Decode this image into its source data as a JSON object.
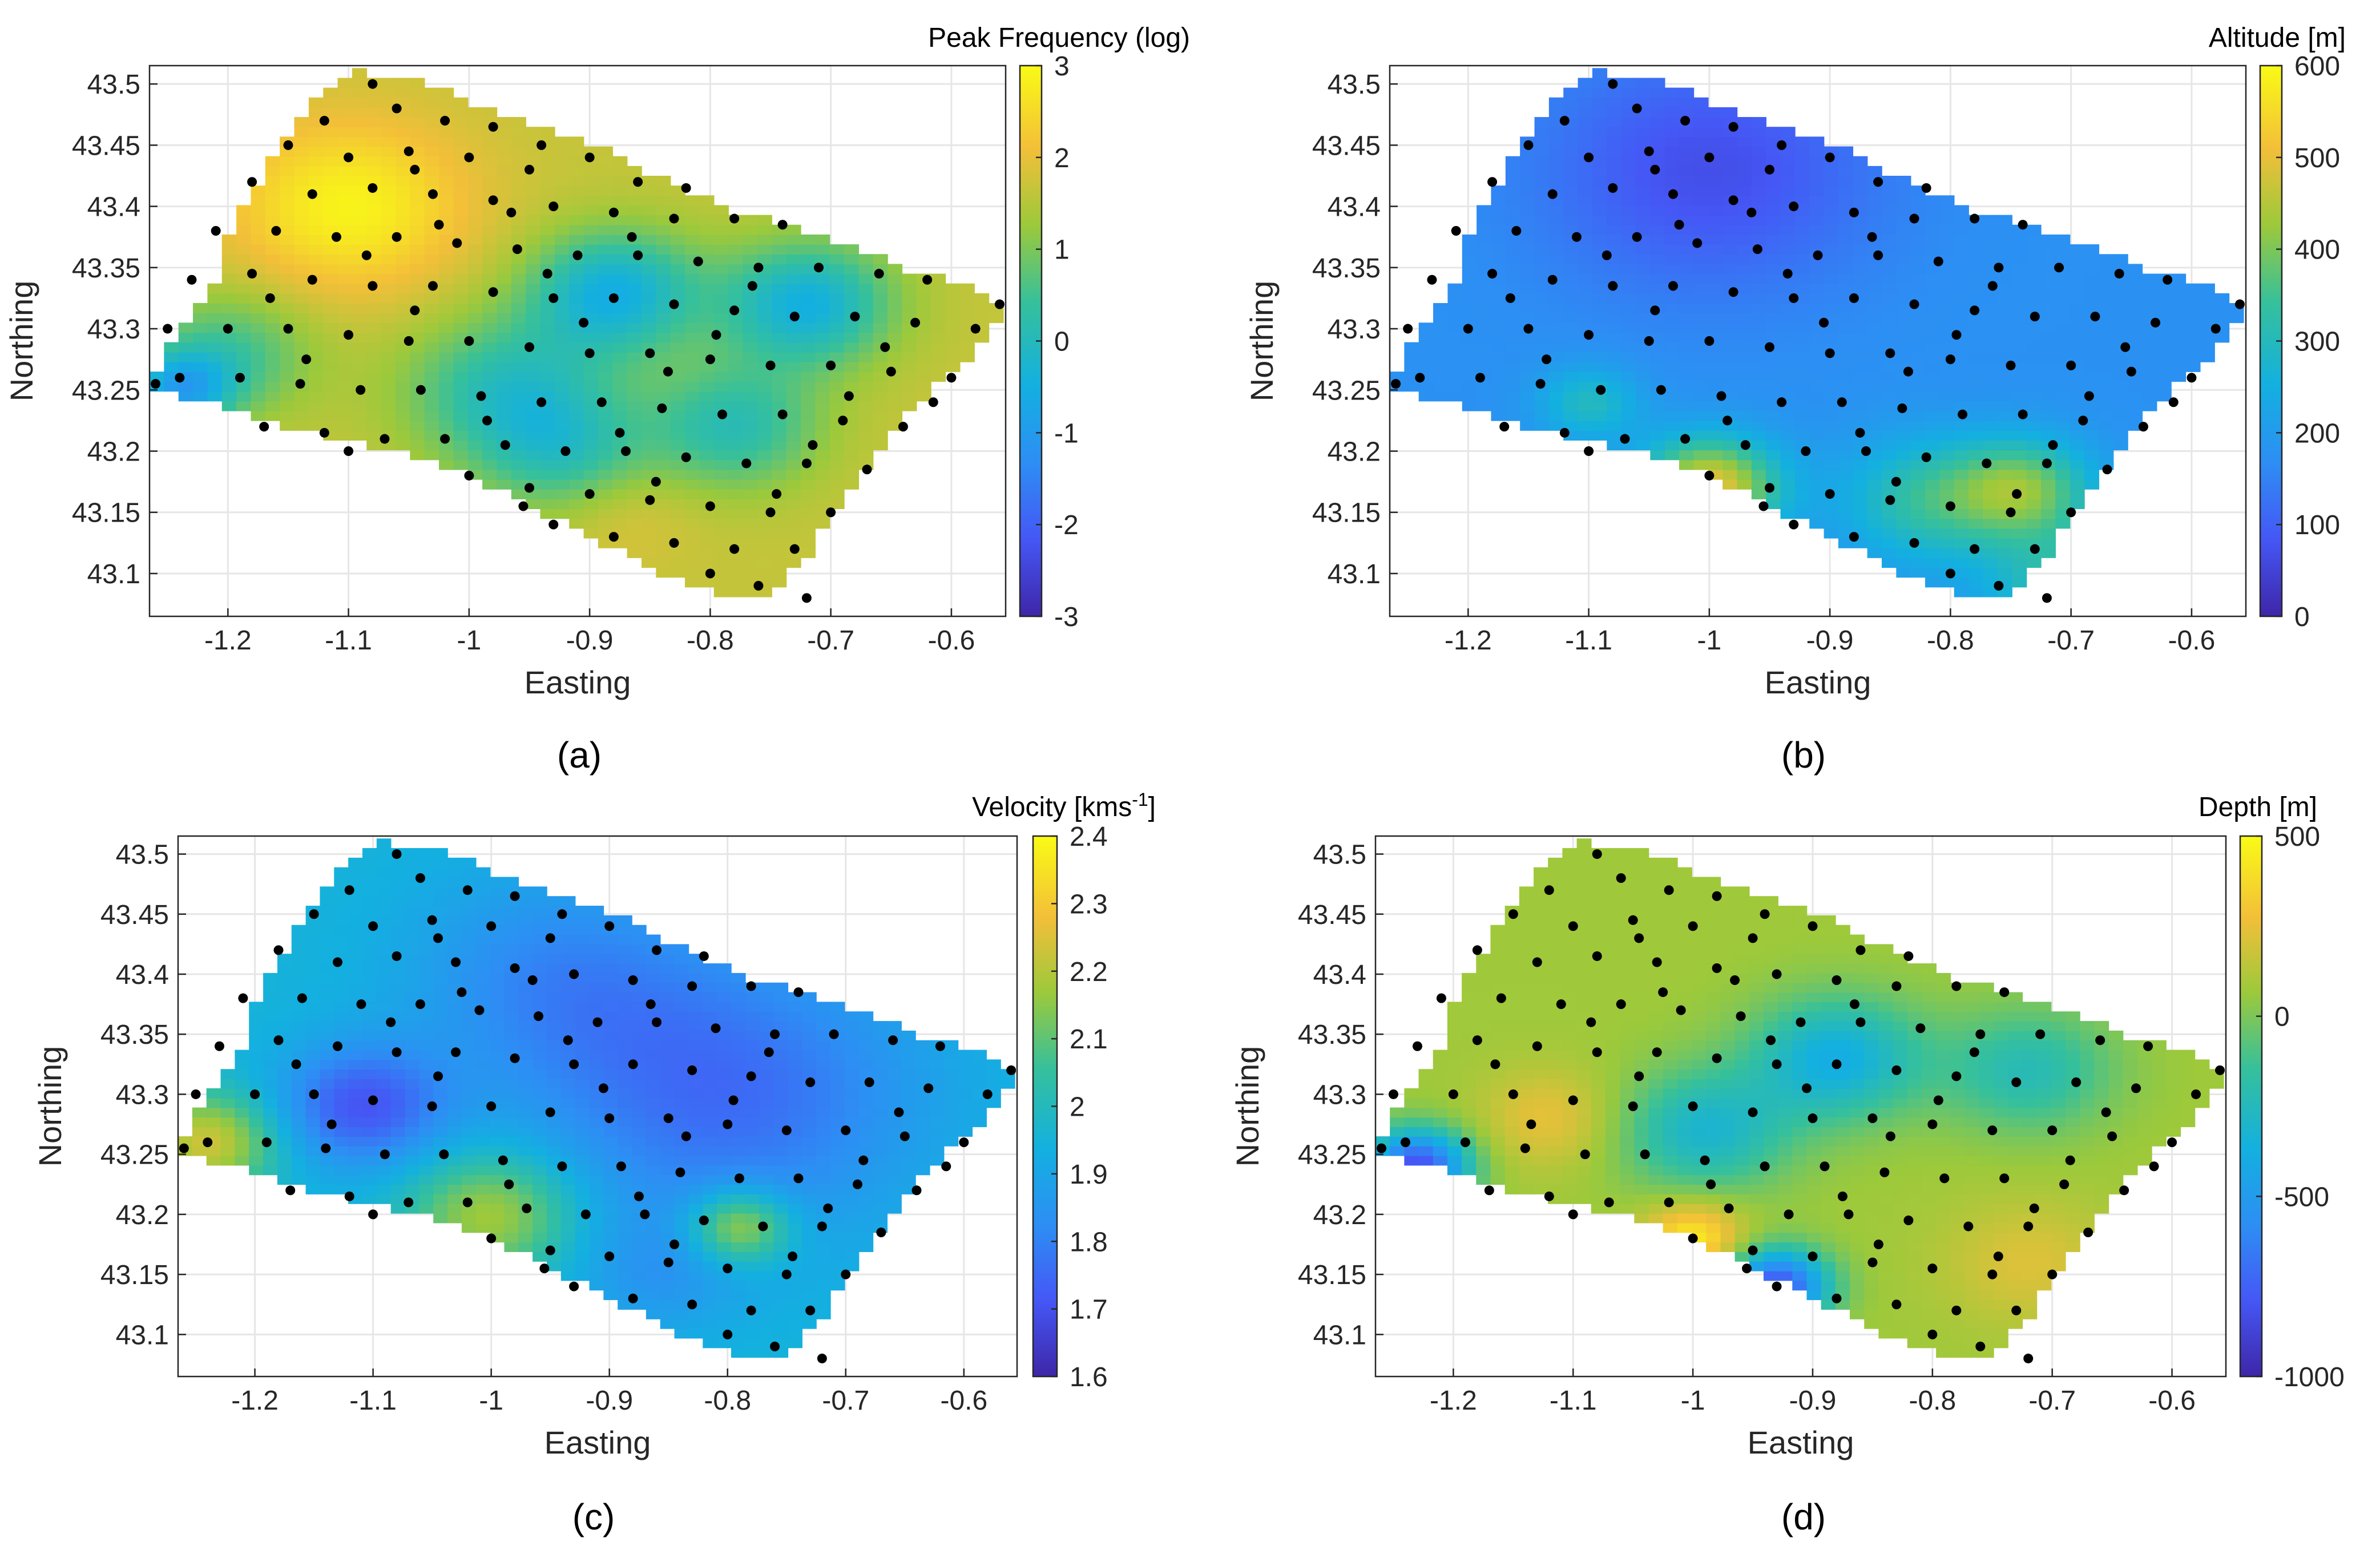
{
  "chart_data": [
    {
      "type": "heatmap",
      "panel_label": "(a)",
      "colorbar_label": "Peak Frequency (log)",
      "xlabel": "Easting",
      "ylabel": "Northing",
      "xlim": [
        -1.265,
        -0.555
      ],
      "ylim": [
        43.065,
        43.515
      ],
      "xticks": [
        "-1.2",
        "-1.1",
        "-1",
        "-0.9",
        "-0.8",
        "-0.7",
        "-0.6"
      ],
      "yticks": [
        "43.1",
        "43.15",
        "43.2",
        "43.25",
        "43.3",
        "43.35",
        "43.4",
        "43.45",
        "43.5"
      ],
      "colorbar_ticks": [
        "-3",
        "-2",
        "-1",
        "0",
        "1",
        "2",
        "3"
      ],
      "clim": [
        -3,
        3
      ]
    },
    {
      "type": "heatmap",
      "panel_label": "(b)",
      "colorbar_label": "Altitude [m]",
      "xlabel": "Easting",
      "ylabel": "Northing",
      "xlim": [
        -1.265,
        -0.555
      ],
      "ylim": [
        43.065,
        43.515
      ],
      "xticks": [
        "-1.2",
        "-1.1",
        "-1",
        "-0.9",
        "-0.8",
        "-0.7",
        "-0.6"
      ],
      "yticks": [
        "43.1",
        "43.15",
        "43.2",
        "43.25",
        "43.3",
        "43.35",
        "43.4",
        "43.45",
        "43.5"
      ],
      "colorbar_ticks": [
        "0",
        "100",
        "200",
        "300",
        "400",
        "500",
        "600"
      ],
      "clim": [
        0,
        600
      ]
    },
    {
      "type": "heatmap",
      "panel_label": "(c)",
      "colorbar_label": "Velocity [kms",
      "colorbar_label_sup": "-1",
      "colorbar_label_end": "]",
      "xlabel": "Easting",
      "ylabel": "Northing",
      "xlim": [
        -1.265,
        -0.555
      ],
      "ylim": [
        43.065,
        43.515
      ],
      "xticks": [
        "-1.2",
        "-1.1",
        "-1",
        "-0.9",
        "-0.8",
        "-0.7",
        "-0.6"
      ],
      "yticks": [
        "43.1",
        "43.15",
        "43.2",
        "43.25",
        "43.3",
        "43.35",
        "43.4",
        "43.45",
        "43.5"
      ],
      "colorbar_ticks": [
        "1.6",
        "1.7",
        "1.8",
        "1.9",
        "2",
        "2.1",
        "2.2",
        "2.3",
        "2.4"
      ],
      "clim": [
        1.6,
        2.4
      ]
    },
    {
      "type": "heatmap",
      "panel_label": "(d)",
      "colorbar_label": "Depth [m]",
      "xlabel": "Easting",
      "ylabel": "Northing",
      "xlim": [
        -1.265,
        -0.555
      ],
      "ylim": [
        43.065,
        43.515
      ],
      "xticks": [
        "-1.2",
        "-1.1",
        "-1",
        "-0.9",
        "-0.8",
        "-0.7",
        "-0.6"
      ],
      "yticks": [
        "43.1",
        "43.15",
        "43.2",
        "43.25",
        "43.3",
        "43.35",
        "43.4",
        "43.45",
        "43.5"
      ],
      "colorbar_ticks": [
        "-1000",
        "-500",
        "0",
        "500"
      ],
      "clim": [
        -1000,
        500
      ]
    }
  ],
  "stations": [
    [
      -1.08,
      43.5
    ],
    [
      -1.12,
      43.47
    ],
    [
      -1.06,
      43.48
    ],
    [
      -1.02,
      43.47
    ],
    [
      -0.98,
      43.465
    ],
    [
      -0.94,
      43.45
    ],
    [
      -0.9,
      43.44
    ],
    [
      -1.15,
      43.45
    ],
    [
      -1.1,
      43.44
    ],
    [
      -1.05,
      43.445
    ],
    [
      -1.0,
      43.44
    ],
    [
      -0.95,
      43.43
    ],
    [
      -0.86,
      43.42
    ],
    [
      -0.82,
      43.415
    ],
    [
      -1.18,
      43.42
    ],
    [
      -1.13,
      43.41
    ],
    [
      -1.08,
      43.415
    ],
    [
      -1.03,
      43.41
    ],
    [
      -0.98,
      43.405
    ],
    [
      -0.93,
      43.4
    ],
    [
      -0.88,
      43.395
    ],
    [
      -0.83,
      43.39
    ],
    [
      -0.78,
      43.39
    ],
    [
      -0.74,
      43.385
    ],
    [
      -1.21,
      43.38
    ],
    [
      -1.16,
      43.38
    ],
    [
      -1.11,
      43.375
    ],
    [
      -1.06,
      43.375
    ],
    [
      -1.01,
      43.37
    ],
    [
      -0.96,
      43.365
    ],
    [
      -0.91,
      43.36
    ],
    [
      -0.86,
      43.36
    ],
    [
      -0.81,
      43.355
    ],
    [
      -0.76,
      43.35
    ],
    [
      -0.71,
      43.35
    ],
    [
      -0.66,
      43.345
    ],
    [
      -0.62,
      43.34
    ],
    [
      -1.23,
      43.34
    ],
    [
      -1.18,
      43.345
    ],
    [
      -1.13,
      43.34
    ],
    [
      -1.08,
      43.335
    ],
    [
      -1.03,
      43.335
    ],
    [
      -0.98,
      43.33
    ],
    [
      -0.93,
      43.325
    ],
    [
      -0.88,
      43.325
    ],
    [
      -0.83,
      43.32
    ],
    [
      -0.78,
      43.315
    ],
    [
      -0.73,
      43.31
    ],
    [
      -0.68,
      43.31
    ],
    [
      -0.63,
      43.305
    ],
    [
      -0.58,
      43.3
    ],
    [
      -1.25,
      43.3
    ],
    [
      -1.2,
      43.3
    ],
    [
      -1.15,
      43.3
    ],
    [
      -1.1,
      43.295
    ],
    [
      -1.05,
      43.29
    ],
    [
      -1.0,
      43.29
    ],
    [
      -0.95,
      43.285
    ],
    [
      -0.9,
      43.28
    ],
    [
      -0.85,
      43.28
    ],
    [
      -0.8,
      43.275
    ],
    [
      -0.75,
      43.27
    ],
    [
      -0.7,
      43.27
    ],
    [
      -0.65,
      43.265
    ],
    [
      -0.6,
      43.26
    ],
    [
      -1.24,
      43.26
    ],
    [
      -1.19,
      43.26
    ],
    [
      -1.14,
      43.255
    ],
    [
      -1.09,
      43.25
    ],
    [
      -1.04,
      43.25
    ],
    [
      -0.99,
      43.245
    ],
    [
      -0.94,
      43.24
    ],
    [
      -0.89,
      43.24
    ],
    [
      -0.84,
      43.235
    ],
    [
      -0.79,
      43.23
    ],
    [
      -0.74,
      43.23
    ],
    [
      -0.69,
      43.225
    ],
    [
      -0.64,
      43.22
    ],
    [
      -1.17,
      43.22
    ],
    [
      -1.12,
      43.215
    ],
    [
      -1.07,
      43.21
    ],
    [
      -1.02,
      43.21
    ],
    [
      -0.97,
      43.205
    ],
    [
      -0.92,
      43.2
    ],
    [
      -0.87,
      43.2
    ],
    [
      -0.82,
      43.195
    ],
    [
      -0.77,
      43.19
    ],
    [
      -0.72,
      43.19
    ],
    [
      -0.67,
      43.185
    ],
    [
      -1.1,
      43.2
    ],
    [
      -1.0,
      43.18
    ],
    [
      -0.95,
      43.17
    ],
    [
      -0.9,
      43.165
    ],
    [
      -0.85,
      43.16
    ],
    [
      -0.8,
      43.155
    ],
    [
      -0.75,
      43.15
    ],
    [
      -0.7,
      43.15
    ],
    [
      -0.93,
      43.14
    ],
    [
      -0.88,
      43.13
    ],
    [
      -0.83,
      43.125
    ],
    [
      -0.78,
      43.12
    ],
    [
      -0.73,
      43.12
    ],
    [
      -0.8,
      43.1
    ],
    [
      -0.76,
      43.09
    ],
    [
      -0.72,
      43.08
    ],
    [
      -1.26,
      43.255
    ],
    [
      -0.56,
      43.32
    ],
    [
      -1.045,
      43.43
    ],
    [
      -0.965,
      43.395
    ],
    [
      -1.085,
      43.36
    ],
    [
      -0.905,
      43.305
    ],
    [
      -0.835,
      43.265
    ],
    [
      -0.715,
      43.205
    ],
    [
      -0.985,
      43.225
    ],
    [
      -1.135,
      43.275
    ],
    [
      -0.765,
      43.335
    ],
    [
      -0.655,
      43.285
    ],
    [
      -0.875,
      43.215
    ],
    [
      -0.955,
      43.155
    ],
    [
      -0.845,
      43.175
    ],
    [
      -0.745,
      43.165
    ],
    [
      -1.045,
      43.315
    ],
    [
      -0.935,
      43.345
    ],
    [
      -0.795,
      43.295
    ],
    [
      -0.685,
      43.245
    ],
    [
      -1.165,
      43.325
    ],
    [
      -0.615,
      43.24
    ],
    [
      -0.865,
      43.375
    ],
    [
      -1.025,
      43.385
    ]
  ]
}
